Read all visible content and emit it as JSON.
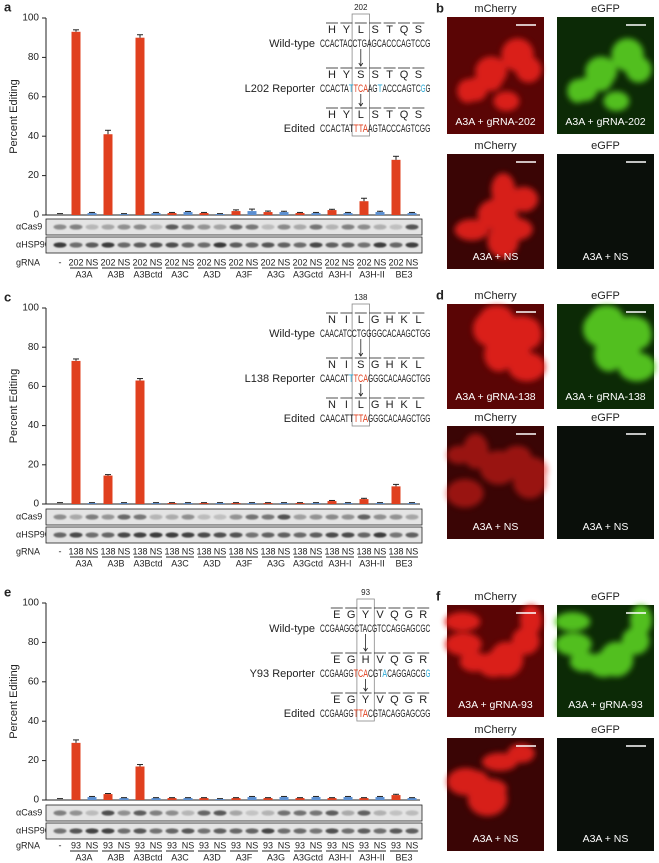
{
  "chart_data": [
    {
      "type": "bar",
      "panel": "a",
      "ylabel": "Percent Editing",
      "ylim": [
        0,
        100
      ],
      "yticks": [
        0,
        20,
        40,
        60,
        80,
        100
      ],
      "categories": [
        "-",
        "202",
        "NS",
        "202",
        "NS",
        "202",
        "NS",
        "202",
        "NS",
        "202",
        "NS",
        "202",
        "NS",
        "202",
        "NS",
        "202",
        "NS",
        "202",
        "NS",
        "202",
        "NS",
        "202",
        "NS"
      ],
      "groups": [
        "A3A",
        "A3B",
        "A3Bctd",
        "A3C",
        "A3D",
        "A3F",
        "A3G",
        "A3Gctd",
        "A3H-I",
        "A3H-II",
        "BE3"
      ],
      "row_label": "gRNA",
      "blot_labels": [
        "αCas9",
        "αHSP90"
      ],
      "values": [
        0.5,
        93,
        1,
        41,
        0.5,
        90,
        1,
        1,
        1.5,
        1,
        0.5,
        2,
        2,
        1.5,
        1.5,
        1,
        1,
        2.5,
        1,
        7,
        1.5,
        28,
        1
      ],
      "errors": [
        0.2,
        1,
        0.3,
        2,
        0.2,
        1.5,
        0.3,
        0.3,
        0.3,
        0.3,
        0.2,
        0.6,
        1,
        0.5,
        0.4,
        0.3,
        0.3,
        0.4,
        0.3,
        1.5,
        0.4,
        1.8,
        0.3
      ],
      "bar_colors": [
        "#8c8c8c",
        "#e0401f",
        "#5b8fd1",
        "#e0401f",
        "#5b8fd1",
        "#e0401f",
        "#5b8fd1",
        "#e0401f",
        "#5b8fd1",
        "#e0401f",
        "#5b8fd1",
        "#e0401f",
        "#5b8fd1",
        "#e0401f",
        "#5b8fd1",
        "#e0401f",
        "#5b8fd1",
        "#e0401f",
        "#5b8fd1",
        "#e0401f",
        "#5b8fd1",
        "#e0401f",
        "#5b8fd1"
      ]
    },
    {
      "type": "bar",
      "panel": "c",
      "ylabel": "Percent Editing",
      "ylim": [
        0,
        100
      ],
      "yticks": [
        0,
        20,
        40,
        60,
        80,
        100
      ],
      "categories": [
        "-",
        "138",
        "NS",
        "138",
        "NS",
        "138",
        "NS",
        "138",
        "NS",
        "138",
        "NS",
        "138",
        "NS",
        "138",
        "NS",
        "138",
        "NS",
        "138",
        "NS",
        "138",
        "NS",
        "138",
        "NS"
      ],
      "groups": [
        "A3A",
        "A3B",
        "A3Bctd",
        "A3C",
        "A3D",
        "A3F",
        "A3G",
        "A3Gctd",
        "A3H-I",
        "A3H-II",
        "BE3"
      ],
      "row_label": "gRNA",
      "blot_labels": [
        "αCas9",
        "αHSP90"
      ],
      "values": [
        0.5,
        73,
        0.5,
        14.5,
        0.5,
        63,
        0.5,
        0.5,
        0.5,
        0.5,
        0.5,
        0.5,
        0.5,
        0.5,
        0.5,
        0.5,
        0.5,
        1.5,
        0.5,
        2.5,
        0.5,
        9,
        0.5
      ],
      "errors": [
        0.2,
        1,
        0.2,
        0.5,
        0.2,
        1,
        0.2,
        0.2,
        0.2,
        0.2,
        0.2,
        0.2,
        0.2,
        0.2,
        0.2,
        0.2,
        0.2,
        0.3,
        0.2,
        0.4,
        0.2,
        1,
        0.2
      ],
      "bar_colors": [
        "#8c8c8c",
        "#e0401f",
        "#5b8fd1",
        "#e0401f",
        "#5b8fd1",
        "#e0401f",
        "#5b8fd1",
        "#e0401f",
        "#5b8fd1",
        "#e0401f",
        "#5b8fd1",
        "#e0401f",
        "#5b8fd1",
        "#e0401f",
        "#5b8fd1",
        "#e0401f",
        "#5b8fd1",
        "#e0401f",
        "#5b8fd1",
        "#e0401f",
        "#5b8fd1",
        "#e0401f",
        "#5b8fd1"
      ]
    },
    {
      "type": "bar",
      "panel": "e",
      "ylabel": "Percent Editing",
      "ylim": [
        0,
        100
      ],
      "yticks": [
        0,
        20,
        40,
        60,
        80,
        100
      ],
      "categories": [
        "-",
        "93",
        "NS",
        "93",
        "NS",
        "93",
        "NS",
        "93",
        "NS",
        "93",
        "NS",
        "93",
        "NS",
        "93",
        "NS",
        "93",
        "NS",
        "93",
        "NS",
        "93",
        "NS",
        "93",
        "NS"
      ],
      "groups": [
        "A3A",
        "A3B",
        "A3Bctd",
        "A3C",
        "A3D",
        "A3F",
        "A3G",
        "A3Gctd",
        "A3H-I",
        "A3H-II",
        "BE3"
      ],
      "row_label": "gRNA",
      "blot_labels": [
        "αCas9",
        "αHSP90"
      ],
      "values": [
        0.5,
        29,
        1.5,
        3,
        1,
        17,
        1,
        1,
        1,
        1,
        0.5,
        1,
        1.5,
        1,
        1.5,
        1,
        1.5,
        1,
        1.5,
        1,
        1.5,
        2.5,
        1
      ],
      "errors": [
        0.2,
        1.5,
        0.3,
        0.3,
        0.2,
        1,
        0.2,
        0.2,
        0.2,
        0.2,
        0.2,
        0.2,
        0.3,
        0.2,
        0.3,
        0.2,
        0.3,
        0.2,
        0.3,
        0.2,
        0.3,
        0.4,
        0.2
      ],
      "bar_colors": [
        "#8c8c8c",
        "#e0401f",
        "#5b8fd1",
        "#e0401f",
        "#5b8fd1",
        "#e0401f",
        "#5b8fd1",
        "#e0401f",
        "#5b8fd1",
        "#e0401f",
        "#5b8fd1",
        "#e0401f",
        "#5b8fd1",
        "#e0401f",
        "#5b8fd1",
        "#e0401f",
        "#5b8fd1",
        "#e0401f",
        "#5b8fd1",
        "#e0401f",
        "#5b8fd1",
        "#e0401f",
        "#5b8fd1"
      ]
    }
  ],
  "sequences": [
    {
      "position": "202",
      "rows": [
        {
          "label": "Wild-type",
          "aa": [
            "H",
            "Y",
            "L",
            "S",
            "T",
            "Q",
            "S"
          ],
          "dna": [
            {
              "text": "CCACTACCTGAGCACCCAGTCCG",
              "color": "#222222"
            }
          ]
        },
        {
          "label": "L202 Reporter",
          "aa": [
            "H",
            "Y",
            "S",
            "S",
            "T",
            "Q",
            "S"
          ],
          "dna": [
            {
              "text": "CCACTA",
              "color": "#222222"
            },
            {
              "text": "T",
              "color": "#2aa9d6"
            },
            {
              "text": "TCA",
              "color": "#e0401f"
            },
            {
              "text": "AG",
              "color": "#222222"
            },
            {
              "text": "T",
              "color": "#2aa9d6"
            },
            {
              "text": "ACCCAGTC",
              "color": "#222222"
            },
            {
              "text": "G",
              "color": "#2aa9d6"
            },
            {
              "text": "G",
              "color": "#222222"
            }
          ]
        },
        {
          "label": "Edited",
          "aa": [
            "H",
            "Y",
            "L",
            "S",
            "T",
            "Q",
            "S"
          ],
          "dna": [
            {
              "text": "CCACTAT",
              "color": "#222222"
            },
            {
              "text": "TTA",
              "color": "#e0401f"
            },
            {
              "text": "AGTACCCAGTCGG",
              "color": "#222222"
            }
          ]
        }
      ]
    },
    {
      "position": "138",
      "rows": [
        {
          "label": "Wild-type",
          "aa": [
            "N",
            "I",
            "L",
            "G",
            "H",
            "K",
            "L"
          ],
          "dna": [
            {
              "text": "CAACATCCTGGGGCACAAGCTGG",
              "color": "#222222"
            }
          ]
        },
        {
          "label": "L138 Reporter",
          "aa": [
            "N",
            "I",
            "S",
            "G",
            "H",
            "K",
            "L"
          ],
          "dna": [
            {
              "text": "CAACAT",
              "color": "#222222"
            },
            {
              "text": "T",
              "color": "#2aa9d6"
            },
            {
              "text": "TCA",
              "color": "#e0401f"
            },
            {
              "text": "GGGCACAAGCTGG",
              "color": "#222222"
            }
          ]
        },
        {
          "label": "Edited",
          "aa": [
            "N",
            "I",
            "L",
            "G",
            "H",
            "K",
            "L"
          ],
          "dna": [
            {
              "text": "CAACATT",
              "color": "#222222"
            },
            {
              "text": "TTA",
              "color": "#e0401f"
            },
            {
              "text": "GGGCACAAGCTGG",
              "color": "#222222"
            }
          ]
        }
      ]
    },
    {
      "position": "93",
      "rows": [
        {
          "label": "Wild-type",
          "aa": [
            "E",
            "G",
            "Y",
            "V",
            "Q",
            "G",
            "R"
          ],
          "dna": [
            {
              "text": "CCGAAGGCTACGTCCAGGAGCGC",
              "color": "#222222"
            }
          ]
        },
        {
          "label": "Y93 Reporter",
          "aa": [
            "E",
            "G",
            "H",
            "V",
            "Q",
            "G",
            "R"
          ],
          "dna": [
            {
              "text": "CCGAAGG",
              "color": "#222222"
            },
            {
              "text": "TCA",
              "color": "#e0401f"
            },
            {
              "text": "CGT",
              "color": "#222222"
            },
            {
              "text": "A",
              "color": "#2aa9d6"
            },
            {
              "text": "CAGGAGCG",
              "color": "#222222"
            },
            {
              "text": "G",
              "color": "#2aa9d6"
            }
          ]
        },
        {
          "label": "Edited",
          "aa": [
            "E",
            "G",
            "Y",
            "V",
            "Q",
            "G",
            "R"
          ],
          "dna": [
            {
              "text": "CCGAAGG",
              "color": "#222222"
            },
            {
              "text": "TTA",
              "color": "#e0401f"
            },
            {
              "text": "CGTACAGGAGCGG",
              "color": "#222222"
            }
          ]
        }
      ]
    }
  ],
  "image_panels": [
    {
      "panel": "b",
      "rows": [
        {
          "channels": [
            "mCherry",
            "eGFP"
          ],
          "captions": [
            "A3A + gRNA-202",
            "A3A + gRNA-202"
          ]
        },
        {
          "channels": [
            "mCherry",
            "eGFP"
          ],
          "captions": [
            "A3A + NS",
            "A3A + NS"
          ]
        }
      ]
    },
    {
      "panel": "d",
      "rows": [
        {
          "channels": [
            "mCherry",
            "eGFP"
          ],
          "captions": [
            "A3A + gRNA-138",
            "A3A + gRNA-138"
          ]
        },
        {
          "channels": [
            "mCherry",
            "eGFP"
          ],
          "captions": [
            "A3A + NS",
            "A3A + NS"
          ]
        }
      ]
    },
    {
      "panel": "f",
      "rows": [
        {
          "channels": [
            "mCherry",
            "eGFP"
          ],
          "captions": [
            "A3A + gRNA-93",
            "A3A + gRNA-93"
          ]
        },
        {
          "channels": [
            "mCherry",
            "eGFP"
          ],
          "captions": [
            "A3A + NS",
            "A3A + NS"
          ]
        }
      ]
    }
  ]
}
